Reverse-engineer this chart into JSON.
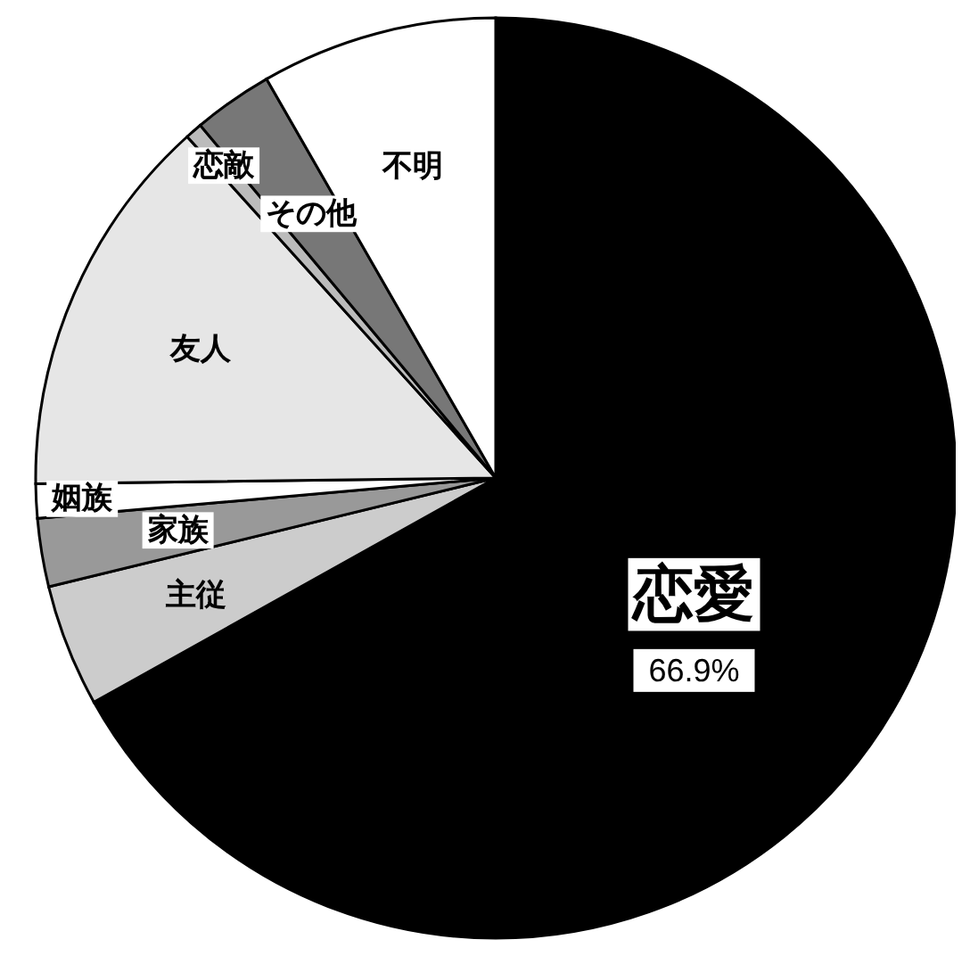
{
  "chart_data": {
    "type": "pie",
    "categories": [
      "恋愛",
      "主従",
      "家族",
      "姻族",
      "友人",
      "恋敵",
      "その他",
      "不明"
    ],
    "values": [
      66.9,
      4.3,
      2.4,
      1.2,
      13.5,
      0.6,
      2.8,
      8.3
    ],
    "colors": [
      "#000000",
      "#cccccc",
      "#999999",
      "#ffffff",
      "#e6e6e6",
      "#bbbbbb",
      "#777777",
      "#ffffff"
    ],
    "value_labels": [
      "66.9%",
      null,
      null,
      null,
      null,
      null,
      null,
      null
    ]
  }
}
